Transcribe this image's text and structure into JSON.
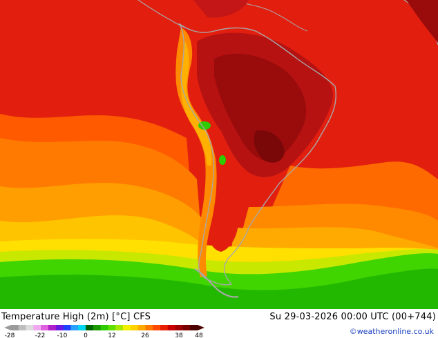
{
  "map": {
    "title": "Temperature High (2m) [°C] CFS",
    "valid_time": "Su 29-03-2026 00:00 UTC (00+744)",
    "credit": "©weatheronline.co.uk",
    "legend": {
      "tick_labels": [
        "-28",
        "-22",
        "-10",
        "0",
        "12",
        "26",
        "38",
        "48"
      ],
      "colors": [
        "#9a9a9a",
        "#bdbdbd",
        "#dcdcdc",
        "#f0a8f0",
        "#e060e0",
        "#b020c8",
        "#6a1ae0",
        "#2040ff",
        "#2aa0ff",
        "#00d8f0",
        "#006400",
        "#1a9a00",
        "#2ecc00",
        "#60e000",
        "#a8e800",
        "#f0f000",
        "#ffd200",
        "#ffaa00",
        "#ff7800",
        "#ff4a00",
        "#e81e00",
        "#c80000",
        "#a00000",
        "#7a0000",
        "#4a0000"
      ]
    },
    "colors": {
      "hot": "#e21f0f",
      "very_hot": "#b21010",
      "warm": "#ff7a00",
      "mild": "#ffb400",
      "cool": "#ffd400",
      "cold_green": "#22c000",
      "coast": "#a8a8a8"
    }
  }
}
